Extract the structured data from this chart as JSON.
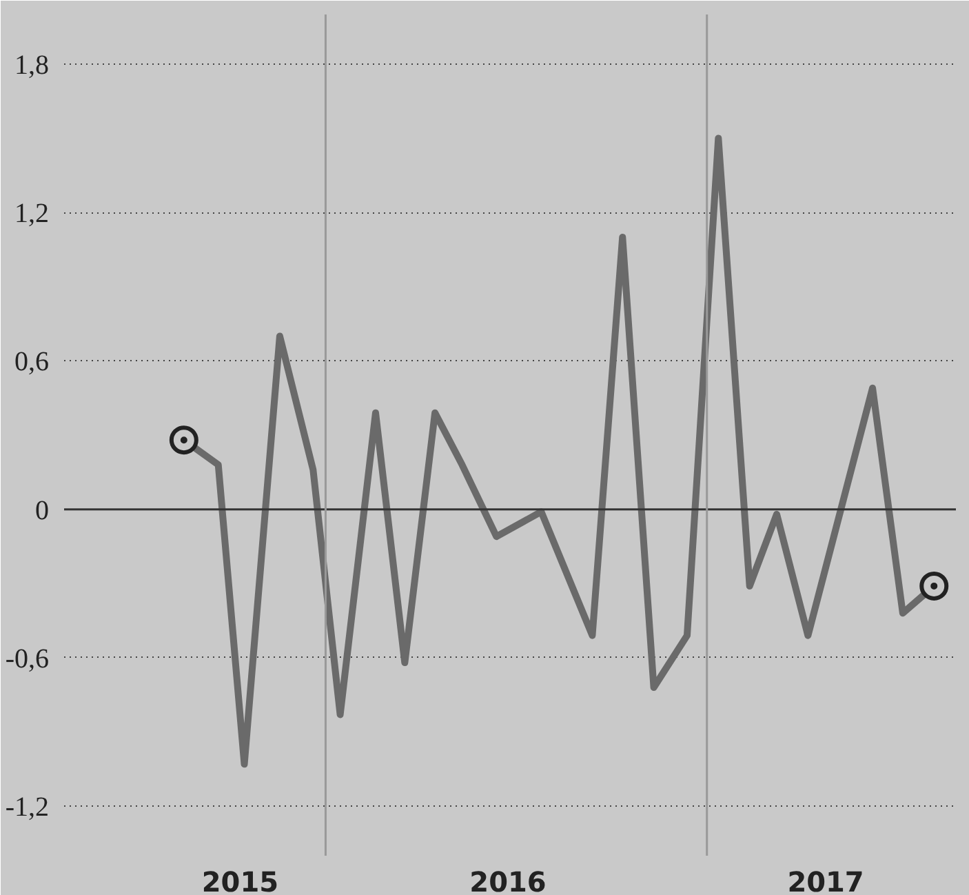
{
  "chart_data": {
    "type": "line",
    "xlim": [
      "2015-04-25",
      "2017-08-28"
    ],
    "ylim": [
      -1.4,
      2.0
    ],
    "xticks": [
      {
        "value": "2015-10-11",
        "label": "2015"
      },
      {
        "value": "2016-06-24",
        "label": "2016"
      },
      {
        "value": "2017-04-25",
        "label": "2017"
      }
    ],
    "yticks": [
      {
        "value": -1.2,
        "label": "-1,2"
      },
      {
        "value": -0.6,
        "label": "-0,6"
      },
      {
        "value": 0,
        "label": "0"
      },
      {
        "value": 0.6,
        "label": "0,6"
      },
      {
        "value": 1.2,
        "label": "1,2"
      },
      {
        "value": 1.8,
        "label": "1,8"
      }
    ],
    "grid": "y",
    "line_style": "solid",
    "ref_lines": [
      {
        "axis": "y",
        "value": 0,
        "color": "#333333",
        "line_style": "solid"
      },
      {
        "axis": "x",
        "value": "2016-01-01",
        "color": "#999999",
        "line_style": "solid"
      },
      {
        "axis": "x",
        "value": "2017-01-01",
        "color": "#999999",
        "line_style": "solid"
      }
    ],
    "series": [
      {
        "color": "#6a6a6a",
        "x": [
          "2015-08-18",
          "2015-09-20",
          "2015-10-15",
          "2015-11-18",
          "2015-12-20",
          "2016-01-15",
          "2016-02-18",
          "2016-03-17",
          "2016-04-15",
          "2016-05-11",
          "2016-06-13",
          "2016-07-26",
          "2016-09-13",
          "2016-10-12",
          "2016-11-11",
          "2016-12-13",
          "2017-01-12",
          "2017-02-11",
          "2017-03-09",
          "2017-04-08",
          "2017-06-09",
          "2017-07-08",
          "2017-08-07"
        ],
        "values": [
          0.28,
          0.18,
          -1.03,
          0.7,
          0.16,
          -0.83,
          0.39,
          -0.62,
          0.39,
          0.18,
          -0.11,
          -0.01,
          -0.51,
          1.1,
          -0.72,
          -0.51,
          1.5,
          -0.31,
          -0.02,
          -0.51,
          0.49,
          -0.42,
          -0.31
        ]
      },
      {
        "type": "scatter",
        "marker": "circle",
        "color": "#222222",
        "x": [
          "2015-08-18",
          "2017-08-07"
        ],
        "values": [
          0.28,
          -0.31
        ]
      }
    ]
  }
}
